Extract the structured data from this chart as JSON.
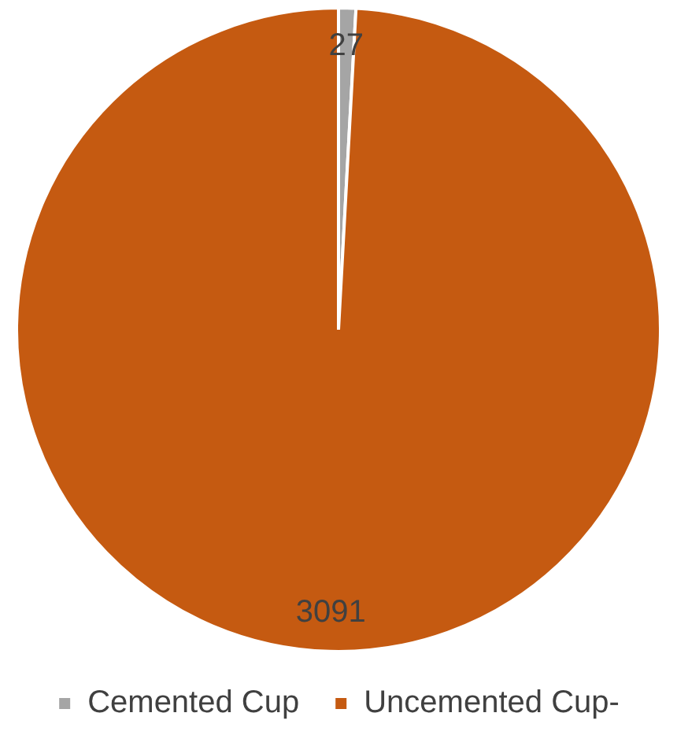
{
  "chart_data": {
    "type": "pie",
    "categories": [
      "Cemented Cup",
      "Uncemented Cup-"
    ],
    "values": [
      27,
      3091
    ],
    "colors": [
      "#a5a5a5",
      "#c55a11"
    ],
    "data_labels": true,
    "legend": "bottom"
  }
}
